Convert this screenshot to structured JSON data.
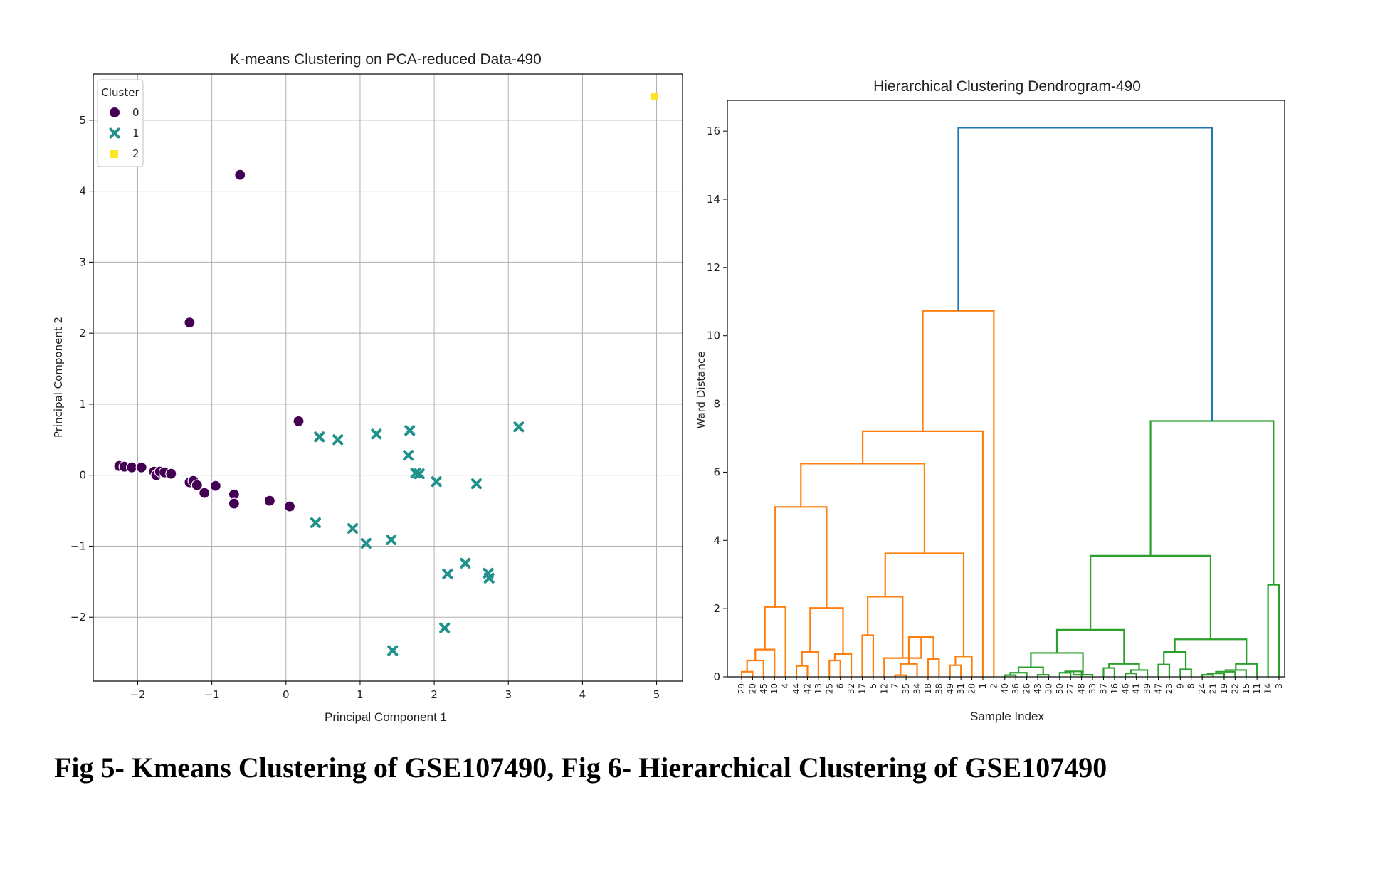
{
  "caption": "Fig 5- Kmeans Clustering of GSE107490, Fig 6- Hierarchical Clustering of GSE107490",
  "colors": {
    "cluster0": "#440154",
    "cluster1": "#21918c",
    "cluster2": "#fde725",
    "orange": "#ff7f0e",
    "green": "#2ca02c",
    "blue": "#1f77b4",
    "grid": "#b0b0b0"
  },
  "chart_data": [
    {
      "type": "scatter",
      "title": "K-means Clustering on PCA-reduced Data-490",
      "xlabel": "Principal Component 1",
      "ylabel": "Principal Component 2",
      "xlim": [
        -2.6,
        5.35
      ],
      "ylim": [
        -2.9,
        5.65
      ],
      "xticks": [
        -2,
        -1,
        0,
        1,
        2,
        3,
        4,
        5
      ],
      "yticks": [
        -2,
        -1,
        0,
        1,
        2,
        3,
        4,
        5
      ],
      "xtick_labels": [
        "−2",
        "−1",
        "0",
        "1",
        "2",
        "3",
        "4",
        "5"
      ],
      "ytick_labels": [
        "−2",
        "−1",
        "0",
        "1",
        "2",
        "3",
        "4",
        "5"
      ],
      "grid": true,
      "legend": {
        "title": "Cluster",
        "placement": "top-left",
        "entries": [
          {
            "label": "0",
            "marker": "circle",
            "color": "#440154"
          },
          {
            "label": "1",
            "marker": "x",
            "color": "#21918c"
          },
          {
            "label": "2",
            "marker": "square",
            "color": "#fde725"
          }
        ]
      },
      "series": [
        {
          "name": "0",
          "marker": "circle",
          "color": "#440154",
          "points": [
            [
              -2.25,
              0.13
            ],
            [
              -2.18,
              0.12
            ],
            [
              -2.08,
              0.11
            ],
            [
              -1.95,
              0.11
            ],
            [
              -1.78,
              0.05
            ],
            [
              -1.75,
              0.0
            ],
            [
              -1.7,
              0.05
            ],
            [
              -1.64,
              0.04
            ],
            [
              -1.55,
              0.02
            ],
            [
              -1.3,
              -0.1
            ],
            [
              -1.25,
              -0.08
            ],
            [
              -1.2,
              -0.14
            ],
            [
              -1.1,
              -0.25
            ],
            [
              -0.95,
              -0.15
            ],
            [
              -0.7,
              -0.27
            ],
            [
              -0.7,
              -0.4
            ],
            [
              -0.62,
              4.23
            ],
            [
              -0.22,
              -0.36
            ],
            [
              0.05,
              -0.44
            ],
            [
              0.17,
              0.76
            ],
            [
              -1.3,
              2.15
            ]
          ]
        },
        {
          "name": "1",
          "marker": "x",
          "color": "#21918c",
          "points": [
            [
              0.45,
              0.54
            ],
            [
              0.7,
              0.5
            ],
            [
              1.22,
              0.58
            ],
            [
              1.67,
              0.63
            ],
            [
              1.65,
              0.28
            ],
            [
              1.75,
              0.03
            ],
            [
              1.8,
              0.02
            ],
            [
              2.03,
              -0.09
            ],
            [
              2.57,
              -0.12
            ],
            [
              3.14,
              0.68
            ],
            [
              0.4,
              -0.67
            ],
            [
              0.9,
              -0.75
            ],
            [
              1.08,
              -0.96
            ],
            [
              1.42,
              -0.91
            ],
            [
              2.18,
              -1.39
            ],
            [
              2.42,
              -1.24
            ],
            [
              2.73,
              -1.38
            ],
            [
              2.74,
              -1.45
            ],
            [
              2.14,
              -2.15
            ],
            [
              1.44,
              -2.47
            ]
          ]
        },
        {
          "name": "2",
          "marker": "square",
          "color": "#fde725",
          "points": [
            [
              4.97,
              5.33
            ]
          ]
        }
      ]
    },
    {
      "type": "dendrogram",
      "title": "Hierarchical Clustering Dendrogram-490",
      "xlabel": "Sample Index",
      "ylabel": "Ward Distance",
      "ylim": [
        0,
        16.9
      ],
      "yticks": [
        0,
        2,
        4,
        6,
        8,
        10,
        12,
        14,
        16
      ],
      "leaves": [
        "29",
        "20",
        "45",
        "10",
        "4",
        "44",
        "42",
        "13",
        "25",
        "6",
        "32",
        "17",
        "5",
        "12",
        "7",
        "35",
        "34",
        "18",
        "38",
        "49",
        "31",
        "28",
        "1",
        "2",
        "40",
        "36",
        "26",
        "43",
        "30",
        "50",
        "27",
        "48",
        "33",
        "37",
        "16",
        "46",
        "41",
        "39",
        "47",
        "23",
        "9",
        "8",
        "24",
        "21",
        "19",
        "22",
        "15",
        "11",
        "14",
        "3"
      ],
      "merges": [
        {
          "left": 0,
          "right": 1,
          "height": 0.15,
          "color": "orange"
        },
        {
          "left": "m0",
          "right": 2,
          "height": 0.48,
          "color": "orange"
        },
        {
          "left": "m1",
          "right": 3,
          "height": 0.8,
          "color": "orange"
        },
        {
          "left": "m2",
          "right": 4,
          "height": 2.05,
          "color": "orange"
        },
        {
          "left": 5,
          "right": 6,
          "height": 0.32,
          "color": "orange"
        },
        {
          "left": "m4",
          "right": 7,
          "height": 0.73,
          "color": "orange"
        },
        {
          "left": 8,
          "right": 9,
          "height": 0.48,
          "color": "orange"
        },
        {
          "left": "m6",
          "right": 10,
          "height": 0.67,
          "color": "orange"
        },
        {
          "left": "m5",
          "right": "m7",
          "height": 2.02,
          "color": "orange"
        },
        {
          "left": "m3",
          "right": "m8",
          "height": 4.98,
          "color": "orange"
        },
        {
          "left": 11,
          "right": 12,
          "height": 1.22,
          "color": "orange"
        },
        {
          "left": 14,
          "right": 15,
          "height": 0.05,
          "color": "orange"
        },
        {
          "left": 16,
          "right": "m11",
          "height": 0.38,
          "color": "orange"
        },
        {
          "left": 17,
          "right": 18,
          "height": 0.52,
          "color": "orange"
        },
        {
          "left": "m12",
          "right": "m13",
          "height": 1.17,
          "color": "orange"
        },
        {
          "left": 13,
          "right": "m14",
          "height": 0.55,
          "color": "orange"
        },
        {
          "left": "m10",
          "right": "m15",
          "height": 2.35,
          "color": "orange"
        },
        {
          "left": 19,
          "right": 20,
          "height": 0.34,
          "color": "orange"
        },
        {
          "left": "m17",
          "right": 21,
          "height": 0.6,
          "color": "orange"
        },
        {
          "left": "m16",
          "right": "m18",
          "height": 3.62,
          "color": "orange"
        },
        {
          "left": "m9",
          "right": "m19",
          "height": 6.25,
          "color": "orange"
        },
        {
          "left": "m20",
          "right": 22,
          "height": 7.2,
          "color": "orange"
        },
        {
          "left": "m21",
          "right": 23,
          "height": 10.73,
          "color": "orange"
        },
        {
          "left": 24,
          "right": 25,
          "height": 0.05,
          "color": "green"
        },
        {
          "left": "m23",
          "right": 26,
          "height": 0.12,
          "color": "green"
        },
        {
          "left": 27,
          "right": 28,
          "height": 0.06,
          "color": "green"
        },
        {
          "left": "m24",
          "right": "m25",
          "height": 0.28,
          "color": "green"
        },
        {
          "left": 29,
          "right": 30,
          "height": 0.12,
          "color": "green"
        },
        {
          "left": "m27",
          "right": 31,
          "height": 0.16,
          "color": "green"
        },
        {
          "left": "m28",
          "right": 32,
          "height": 0.06,
          "color": "green"
        },
        {
          "left": "m26",
          "right": "m29",
          "height": 0.7,
          "color": "green"
        },
        {
          "left": 33,
          "right": 34,
          "height": 0.26,
          "color": "green"
        },
        {
          "left": 35,
          "right": 36,
          "height": 0.1,
          "color": "green"
        },
        {
          "left": "m32",
          "right": 37,
          "height": 0.2,
          "color": "green"
        },
        {
          "left": "m31",
          "right": "m33",
          "height": 0.38,
          "color": "green"
        },
        {
          "left": "m30",
          "right": "m34",
          "height": 1.38,
          "color": "green"
        },
        {
          "left": 38,
          "right": 39,
          "height": 0.36,
          "color": "green"
        },
        {
          "left": 40,
          "right": 41,
          "height": 0.22,
          "color": "green"
        },
        {
          "left": "m36",
          "right": "m37",
          "height": 0.73,
          "color": "green"
        },
        {
          "left": 42,
          "right": 43,
          "height": 0.06,
          "color": "green"
        },
        {
          "left": "m39",
          "right": 44,
          "height": 0.1,
          "color": "green"
        },
        {
          "left": "m40",
          "right": 45,
          "height": 0.15,
          "color": "green"
        },
        {
          "left": "m41",
          "right": 46,
          "height": 0.2,
          "color": "green"
        },
        {
          "left": "m42",
          "right": 47,
          "height": 0.38,
          "color": "green"
        },
        {
          "left": "m38",
          "right": "m43",
          "height": 1.1,
          "color": "green"
        },
        {
          "left": "m35",
          "right": "m44",
          "height": 3.55,
          "color": "green"
        },
        {
          "left": 48,
          "right": 49,
          "height": 2.7,
          "color": "green"
        },
        {
          "left": "m45",
          "right": "m46",
          "height": 7.5,
          "color": "green"
        },
        {
          "left": "m22",
          "right": "m47",
          "height": 16.1,
          "color": "blue"
        }
      ]
    }
  ]
}
